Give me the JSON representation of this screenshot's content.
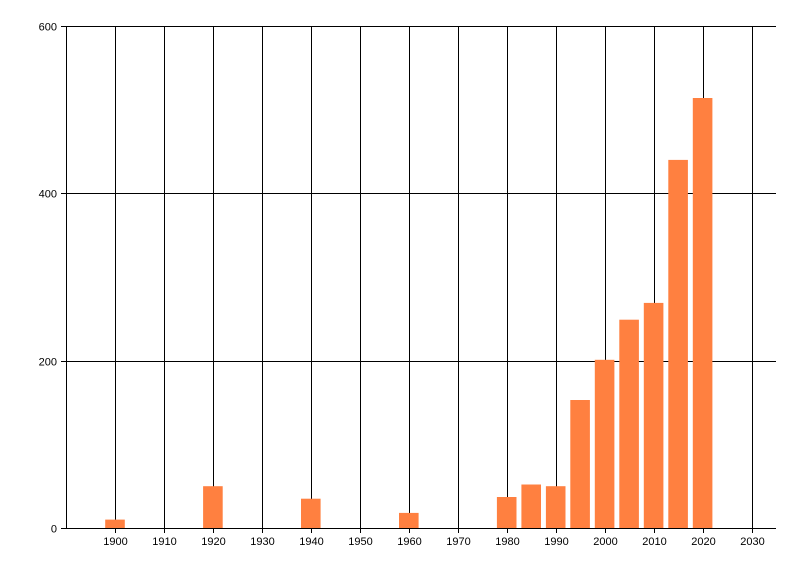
{
  "chart_data": {
    "type": "bar",
    "title": "",
    "xlabel": "",
    "ylabel": "",
    "x": [
      1900,
      1920,
      1940,
      1960,
      1980,
      1985,
      1990,
      1995,
      2000,
      2005,
      2010,
      2015,
      2020
    ],
    "values": [
      10,
      50,
      35,
      18,
      37,
      52,
      50,
      153,
      201,
      249,
      269,
      440,
      514
    ],
    "xlim": [
      1890,
      2035
    ],
    "ylim": [
      0,
      600
    ],
    "xticks": [
      "1900",
      "1910",
      "1920",
      "1930",
      "1940",
      "1950",
      "1960",
      "1970",
      "1980",
      "1990",
      "2000",
      "2010",
      "2020",
      "2030"
    ],
    "yticks": [
      "0",
      "200",
      "400",
      "600"
    ],
    "grid": true,
    "legend": "none",
    "bar_color": "#FF8040",
    "grid_color": "#000000"
  }
}
